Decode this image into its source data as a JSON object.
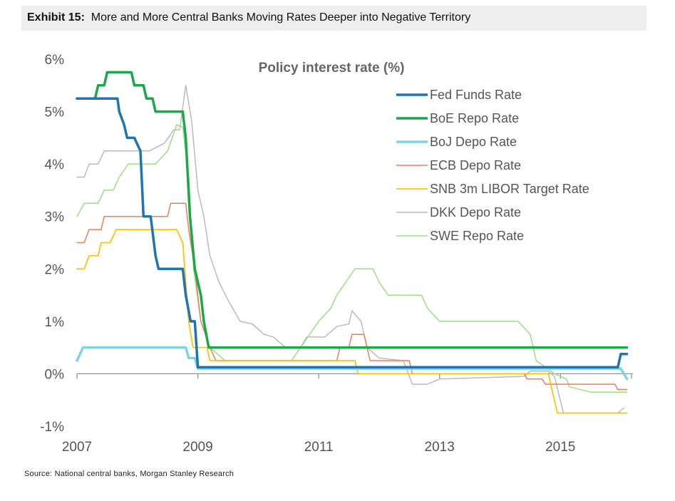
{
  "exhibit": {
    "label": "Exhibit 15:",
    "title": "More and More Central Banks Moving Rates Deeper into Negative Territory"
  },
  "source": "Source: National central banks, Morgan Stanley Research",
  "chart_data": {
    "type": "line",
    "title": "Policy interest rate (%)",
    "xlabel": "",
    "ylabel": "",
    "xlim": [
      2007.0,
      2016.2
    ],
    "ylim": [
      -1,
      6
    ],
    "x_ticks": [
      2007,
      2009,
      2011,
      2013,
      2015
    ],
    "x_tick_labels": [
      "2007",
      "2009",
      "2011",
      "2013",
      "2015"
    ],
    "y_ticks": [
      -1,
      0,
      1,
      2,
      3,
      4,
      5,
      6
    ],
    "y_tick_labels": [
      "-1%",
      "0%",
      "1%",
      "2%",
      "3%",
      "4%",
      "5%",
      "6%"
    ],
    "legend_position": "top-right",
    "series": [
      {
        "name": "Fed Funds Rate",
        "color": "#1f74b4",
        "width": 3.5,
        "points": [
          [
            2007.0,
            5.25
          ],
          [
            2007.67,
            5.25
          ],
          [
            2007.7,
            5.0
          ],
          [
            2007.78,
            4.75
          ],
          [
            2007.83,
            4.5
          ],
          [
            2007.95,
            4.5
          ],
          [
            2008.05,
            4.25
          ],
          [
            2008.08,
            3.5
          ],
          [
            2008.1,
            3.0
          ],
          [
            2008.22,
            3.0
          ],
          [
            2008.3,
            2.25
          ],
          [
            2008.35,
            2.0
          ],
          [
            2008.75,
            2.0
          ],
          [
            2008.8,
            1.5
          ],
          [
            2008.88,
            1.0
          ],
          [
            2008.95,
            1.0
          ],
          [
            2009.0,
            0.125
          ],
          [
            2015.95,
            0.125
          ],
          [
            2016.0,
            0.375
          ],
          [
            2016.1,
            0.375
          ]
        ]
      },
      {
        "name": "BoE Repo Rate",
        "color": "#1aa84a",
        "width": 3.5,
        "points": [
          [
            2007.0,
            5.25
          ],
          [
            2007.3,
            5.25
          ],
          [
            2007.35,
            5.5
          ],
          [
            2007.45,
            5.5
          ],
          [
            2007.5,
            5.75
          ],
          [
            2007.9,
            5.75
          ],
          [
            2007.95,
            5.5
          ],
          [
            2008.1,
            5.5
          ],
          [
            2008.15,
            5.25
          ],
          [
            2008.25,
            5.25
          ],
          [
            2008.3,
            5.0
          ],
          [
            2008.75,
            5.0
          ],
          [
            2008.8,
            4.5
          ],
          [
            2008.87,
            3.0
          ],
          [
            2008.95,
            2.0
          ],
          [
            2009.05,
            1.5
          ],
          [
            2009.1,
            1.0
          ],
          [
            2009.18,
            0.5
          ],
          [
            2016.1,
            0.5
          ]
        ]
      },
      {
        "name": "BoJ Depo Rate",
        "color": "#7fd3e3",
        "width": 3.5,
        "points": [
          [
            2007.0,
            0.25
          ],
          [
            2007.1,
            0.5
          ],
          [
            2008.8,
            0.5
          ],
          [
            2008.85,
            0.3
          ],
          [
            2008.95,
            0.3
          ],
          [
            2009.0,
            0.1
          ],
          [
            2016.0,
            0.1
          ],
          [
            2016.1,
            -0.1
          ]
        ]
      },
      {
        "name": "ECB Depo Rate",
        "color": "#ef7d5b",
        "width": 1.5,
        "points": [
          [
            2007.0,
            2.5
          ],
          [
            2007.12,
            2.5
          ],
          [
            2007.2,
            2.75
          ],
          [
            2007.4,
            2.75
          ],
          [
            2007.45,
            3.0
          ],
          [
            2008.5,
            3.0
          ],
          [
            2008.55,
            3.25
          ],
          [
            2008.8,
            3.25
          ],
          [
            2008.85,
            2.75
          ],
          [
            2008.95,
            2.0
          ],
          [
            2009.05,
            1.0
          ],
          [
            2009.2,
            0.5
          ],
          [
            2009.3,
            0.25
          ],
          [
            2011.3,
            0.25
          ],
          [
            2011.35,
            0.5
          ],
          [
            2011.5,
            0.5
          ],
          [
            2011.55,
            0.75
          ],
          [
            2011.75,
            0.75
          ],
          [
            2011.85,
            0.25
          ],
          [
            2012.5,
            0.25
          ],
          [
            2012.55,
            0.0
          ],
          [
            2014.4,
            0.0
          ],
          [
            2014.45,
            -0.1
          ],
          [
            2014.7,
            -0.1
          ],
          [
            2014.75,
            -0.2
          ],
          [
            2015.9,
            -0.2
          ],
          [
            2015.95,
            -0.3
          ],
          [
            2016.1,
            -0.3
          ]
        ]
      },
      {
        "name": "SNB 3m LIBOR Target Rate",
        "color": "#ffc20e",
        "width": 1.8,
        "points": [
          [
            2007.0,
            2.0
          ],
          [
            2007.12,
            2.0
          ],
          [
            2007.2,
            2.25
          ],
          [
            2007.35,
            2.25
          ],
          [
            2007.4,
            2.5
          ],
          [
            2007.55,
            2.5
          ],
          [
            2007.65,
            2.75
          ],
          [
            2008.65,
            2.75
          ],
          [
            2008.75,
            2.5
          ],
          [
            2008.85,
            1.0
          ],
          [
            2008.92,
            0.5
          ],
          [
            2009.15,
            0.5
          ],
          [
            2009.2,
            0.25
          ],
          [
            2011.6,
            0.25
          ],
          [
            2011.65,
            0.0
          ],
          [
            2014.8,
            0.0
          ],
          [
            2014.95,
            -0.75
          ],
          [
            2016.1,
            -0.75
          ]
        ]
      },
      {
        "name": "DKK Depo Rate",
        "color": "#bbbbbb",
        "width": 1.5,
        "points": [
          [
            2007.0,
            3.75
          ],
          [
            2007.12,
            3.75
          ],
          [
            2007.2,
            4.0
          ],
          [
            2007.35,
            4.0
          ],
          [
            2007.45,
            4.25
          ],
          [
            2008.2,
            4.25
          ],
          [
            2008.45,
            4.4
          ],
          [
            2008.6,
            4.65
          ],
          [
            2008.7,
            4.65
          ],
          [
            2008.8,
            5.5
          ],
          [
            2008.9,
            4.8
          ],
          [
            2009.0,
            3.5
          ],
          [
            2009.1,
            3.0
          ],
          [
            2009.2,
            2.25
          ],
          [
            2009.35,
            1.75
          ],
          [
            2009.5,
            1.4
          ],
          [
            2009.7,
            1.0
          ],
          [
            2009.9,
            0.95
          ],
          [
            2010.1,
            0.75
          ],
          [
            2010.25,
            0.7
          ],
          [
            2010.45,
            0.5
          ],
          [
            2010.7,
            0.5
          ],
          [
            2010.8,
            0.7
          ],
          [
            2011.1,
            0.7
          ],
          [
            2011.3,
            0.9
          ],
          [
            2011.5,
            0.95
          ],
          [
            2011.55,
            1.2
          ],
          [
            2011.7,
            1.0
          ],
          [
            2011.8,
            0.5
          ],
          [
            2012.0,
            0.3
          ],
          [
            2012.4,
            0.25
          ],
          [
            2012.55,
            -0.2
          ],
          [
            2012.8,
            -0.2
          ],
          [
            2013.0,
            -0.1
          ],
          [
            2014.4,
            -0.05
          ],
          [
            2014.5,
            0.05
          ],
          [
            2014.8,
            0.05
          ],
          [
            2014.9,
            -0.05
          ],
          [
            2015.05,
            -0.75
          ],
          [
            2015.95,
            -0.75
          ],
          [
            2016.05,
            -0.65
          ]
        ]
      },
      {
        "name": "SWE Repo Rate",
        "color": "#9dde86",
        "width": 1.5,
        "points": [
          [
            2007.0,
            3.0
          ],
          [
            2007.12,
            3.25
          ],
          [
            2007.35,
            3.25
          ],
          [
            2007.45,
            3.5
          ],
          [
            2007.6,
            3.5
          ],
          [
            2007.7,
            3.75
          ],
          [
            2007.85,
            4.0
          ],
          [
            2008.3,
            4.0
          ],
          [
            2008.5,
            4.25
          ],
          [
            2008.65,
            4.75
          ],
          [
            2008.75,
            4.7
          ],
          [
            2008.85,
            3.75
          ],
          [
            2008.93,
            2.0
          ],
          [
            2009.05,
            1.0
          ],
          [
            2009.2,
            0.5
          ],
          [
            2009.45,
            0.25
          ],
          [
            2010.55,
            0.25
          ],
          [
            2010.7,
            0.5
          ],
          [
            2010.85,
            0.75
          ],
          [
            2011.0,
            1.0
          ],
          [
            2011.2,
            1.25
          ],
          [
            2011.3,
            1.5
          ],
          [
            2011.45,
            1.75
          ],
          [
            2011.6,
            2.0
          ],
          [
            2011.9,
            2.0
          ],
          [
            2012.0,
            1.75
          ],
          [
            2012.15,
            1.5
          ],
          [
            2012.7,
            1.5
          ],
          [
            2012.8,
            1.25
          ],
          [
            2013.0,
            1.0
          ],
          [
            2014.3,
            1.0
          ],
          [
            2014.5,
            0.75
          ],
          [
            2014.6,
            0.25
          ],
          [
            2014.9,
            0.0
          ],
          [
            2015.1,
            -0.1
          ],
          [
            2015.15,
            -0.25
          ],
          [
            2015.5,
            -0.35
          ],
          [
            2016.1,
            -0.35
          ]
        ]
      }
    ]
  }
}
